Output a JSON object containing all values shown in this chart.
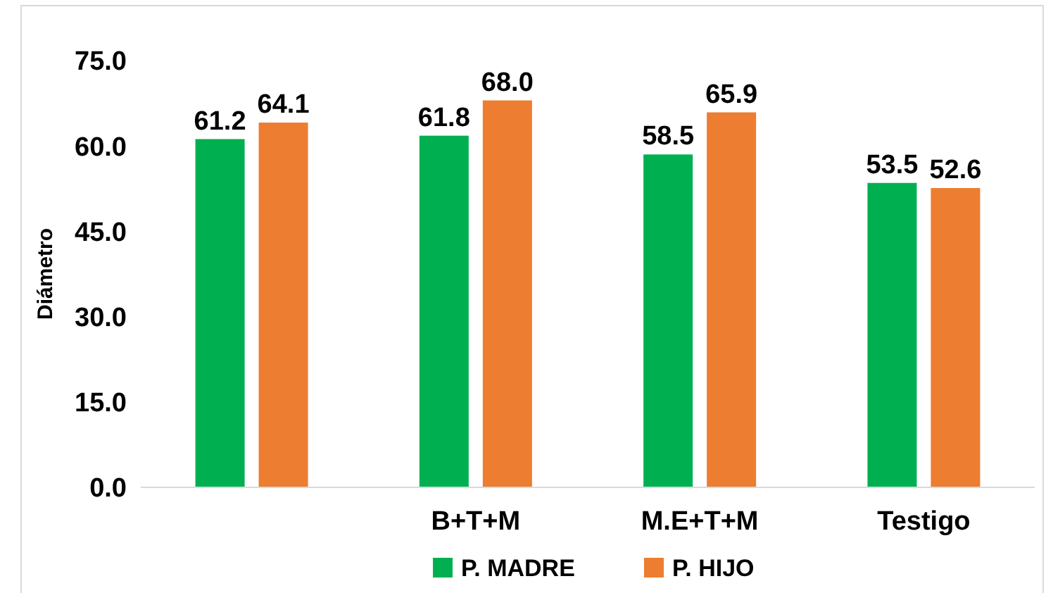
{
  "chart_data": {
    "type": "bar",
    "ylabel": "Diámetro",
    "categories": [
      null,
      "B+T+M",
      "M.E+T+M",
      "Testigo"
    ],
    "series": [
      {
        "name": "P. MADRE",
        "color": "#00b050",
        "values": [
          61.2,
          61.8,
          58.5,
          53.5
        ],
        "value_labels": [
          "61.2",
          "61.8",
          "58.5",
          "53.5"
        ]
      },
      {
        "name": "P. HIJO",
        "color": "#ed7d31",
        "values": [
          64.1,
          68.0,
          65.9,
          52.6
        ],
        "value_labels": [
          "64.1",
          "68.0",
          "65.9",
          "52.6"
        ]
      }
    ],
    "ylim": [
      0,
      75
    ],
    "yticks": [
      {
        "value": 0,
        "label": "0.0"
      },
      {
        "value": 15,
        "label": "15.0"
      },
      {
        "value": 30,
        "label": "30.0"
      },
      {
        "value": 45,
        "label": "45.0"
      },
      {
        "value": 60,
        "label": "60.0"
      },
      {
        "value": 75,
        "label": "75.0"
      }
    ],
    "grid": false,
    "legend": "bottom"
  }
}
